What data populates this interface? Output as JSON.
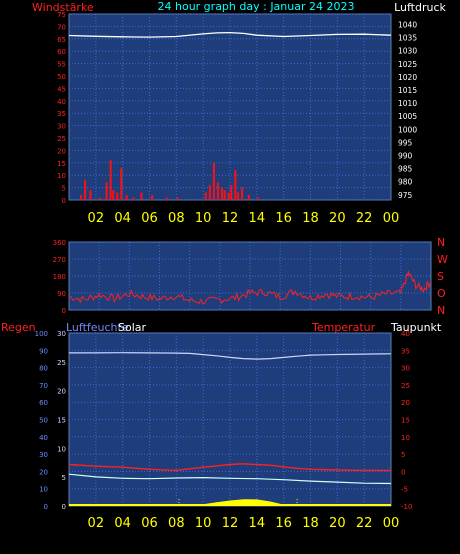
{
  "header": {
    "title": "24 hour graph day : Januar 24 2023",
    "left_label": "Windstärke",
    "right_label": "Luftdruck"
  },
  "colors": {
    "background": "#000000",
    "plot": "#1f3d7a",
    "grid": "#3a6ad8",
    "wind_axis": "#ff2020",
    "pressure_axis": "#ffffff",
    "title": "#00ffff",
    "hour_labels": "#ffff00",
    "wind_bars": "#ff1010",
    "pressure_line": "#ffffff",
    "direction_line": "#ff2020",
    "humidity_line": "#c8d8ff",
    "temperature_line": "#ff2020",
    "dewpoint_line": "#d0ffff",
    "solar_fill": "#ffff00"
  },
  "hour_labels": [
    "02",
    "04",
    "06",
    "08",
    "10",
    "12",
    "14",
    "16",
    "18",
    "20",
    "22",
    "00"
  ],
  "chart_data": [
    {
      "type": "bar",
      "name": "wind-pressure",
      "x_range": [
        0,
        24
      ],
      "left_axis": {
        "label": "Windstärke",
        "ticks": [
          0,
          5,
          10,
          15,
          20,
          25,
          30,
          35,
          40,
          45,
          50,
          55,
          60,
          65,
          70,
          75
        ],
        "range": [
          0,
          75
        ]
      },
      "right_axis": {
        "label": "Luftdruck",
        "ticks": [
          975,
          980,
          985,
          990,
          995,
          1000,
          1005,
          1010,
          1015,
          1020,
          1025,
          1030,
          1035,
          1040
        ],
        "range": [
          973,
          1044
        ]
      },
      "series": [
        {
          "name": "Windstärke",
          "axis": "left",
          "kind": "bars",
          "x": [
            0.9,
            1.2,
            1.6,
            2.3,
            2.8,
            3.1,
            3.3,
            3.6,
            3.9,
            4.3,
            4.8,
            5.4,
            6.2,
            7.3,
            8.1,
            10.2,
            10.5,
            10.8,
            11.1,
            11.4,
            11.6,
            11.9,
            12.1,
            12.4,
            12.6,
            12.9,
            13.4,
            14.1
          ],
          "values": [
            2,
            8,
            4,
            1,
            7,
            16,
            4,
            3,
            13,
            2,
            1,
            3,
            2,
            1,
            1,
            3,
            6,
            15,
            7,
            5,
            4,
            3,
            6,
            12,
            3,
            5,
            2,
            1
          ]
        },
        {
          "name": "Luftdruck",
          "axis": "right",
          "kind": "line",
          "x": [
            0,
            2,
            4,
            6,
            8,
            10,
            11,
            12,
            13,
            14,
            16,
            18,
            20,
            22,
            24
          ],
          "values": [
            1035.8,
            1035.5,
            1035.3,
            1035.2,
            1035.4,
            1036.4,
            1036.8,
            1036.9,
            1036.6,
            1035.9,
            1035.4,
            1035.8,
            1036.2,
            1036.3,
            1035.9
          ]
        }
      ]
    },
    {
      "type": "line",
      "name": "wind-direction",
      "x_range": [
        0,
        24
      ],
      "y_axis": {
        "ticks": [
          0,
          90,
          180,
          270,
          360
        ],
        "range": [
          0,
          360
        ]
      },
      "compass_labels": [
        "N",
        "W",
        "S",
        "O",
        "N"
      ],
      "series": [
        {
          "name": "Windrichtung",
          "x": [
            0,
            1,
            2,
            3,
            4,
            5,
            6,
            7,
            8,
            9,
            10,
            11,
            12,
            13,
            14,
            15,
            16,
            17,
            18,
            19,
            20,
            21,
            22,
            22.5,
            23,
            23.5,
            24
          ],
          "values": [
            70,
            55,
            80,
            60,
            85,
            70,
            60,
            75,
            50,
            45,
            55,
            65,
            90,
            95,
            70,
            100,
            65,
            85,
            70,
            75,
            65,
            85,
            90,
            195,
            130,
            110,
            150
          ]
        }
      ]
    },
    {
      "type": "line",
      "name": "humidity-temperature-solar",
      "labels": {
        "regen": "Regen",
        "luftfeuchte": "Luftfeuchte",
        "solar": "Solar",
        "temperatur": "Temperatur",
        "taupunkt": "Taupunkt"
      },
      "x_range": [
        0,
        24
      ],
      "left_axis": {
        "label": "Regen",
        "ticks": [
          0,
          10,
          20,
          30,
          40,
          50,
          60,
          70,
          80,
          90,
          100
        ],
        "range": [
          0,
          100
        ]
      },
      "inner_axis": {
        "label": "Luftfeuchte",
        "ticks": [
          0,
          5,
          10,
          15,
          20,
          25,
          30
        ],
        "range": [
          0,
          30
        ]
      },
      "right_axis": {
        "label": "Temperatur",
        "ticks": [
          -10,
          -5,
          0,
          5,
          10,
          15,
          20,
          25,
          30,
          35,
          40
        ],
        "range": [
          -10,
          40
        ]
      },
      "series": [
        {
          "name": "Luftfeuchte",
          "axis": "left",
          "x": [
            0,
            2,
            4,
            6,
            8,
            9,
            10,
            11,
            12,
            13,
            14,
            15,
            16,
            17,
            18,
            19,
            20,
            22,
            24
          ],
          "values": [
            88.5,
            88.5,
            88.6,
            88.5,
            88.4,
            88.2,
            87.5,
            86.8,
            85.9,
            85.2,
            84.9,
            85.2,
            85.9,
            86.6,
            87.2,
            87.4,
            87.6,
            87.8,
            88
          ]
        },
        {
          "name": "Temperatur",
          "axis": "right",
          "x": [
            0,
            2,
            4,
            6,
            8,
            10,
            11,
            12,
            13,
            14,
            15,
            16,
            17,
            18,
            20,
            22,
            24
          ],
          "values": [
            2,
            1.5,
            1.2,
            0.6,
            0.3,
            1.2,
            1.6,
            2,
            2.2,
            2,
            1.8,
            1.3,
            0.9,
            0.6,
            0.4,
            0.3,
            0.3
          ]
        },
        {
          "name": "Taupunkt",
          "axis": "right",
          "x": [
            0,
            2,
            4,
            6,
            8,
            10,
            12,
            14,
            16,
            18,
            20,
            22,
            24
          ],
          "values": [
            -0.8,
            -1.6,
            -2,
            -2.1,
            -1.9,
            -1.8,
            -2,
            -2.1,
            -2.4,
            -2.8,
            -3.1,
            -3.4,
            -3.5
          ]
        },
        {
          "name": "Solar",
          "axis": "left",
          "kind": "area",
          "x": [
            8.2,
            9,
            10,
            11,
            12,
            13,
            14,
            15,
            16,
            17
          ],
          "values": [
            0,
            0.3,
            1,
            2.2,
            3.2,
            3.9,
            3.8,
            2.6,
            0.8,
            0
          ]
        }
      ],
      "markers": {
        "sunrise": 8.2,
        "sunset": 17
      }
    }
  ]
}
